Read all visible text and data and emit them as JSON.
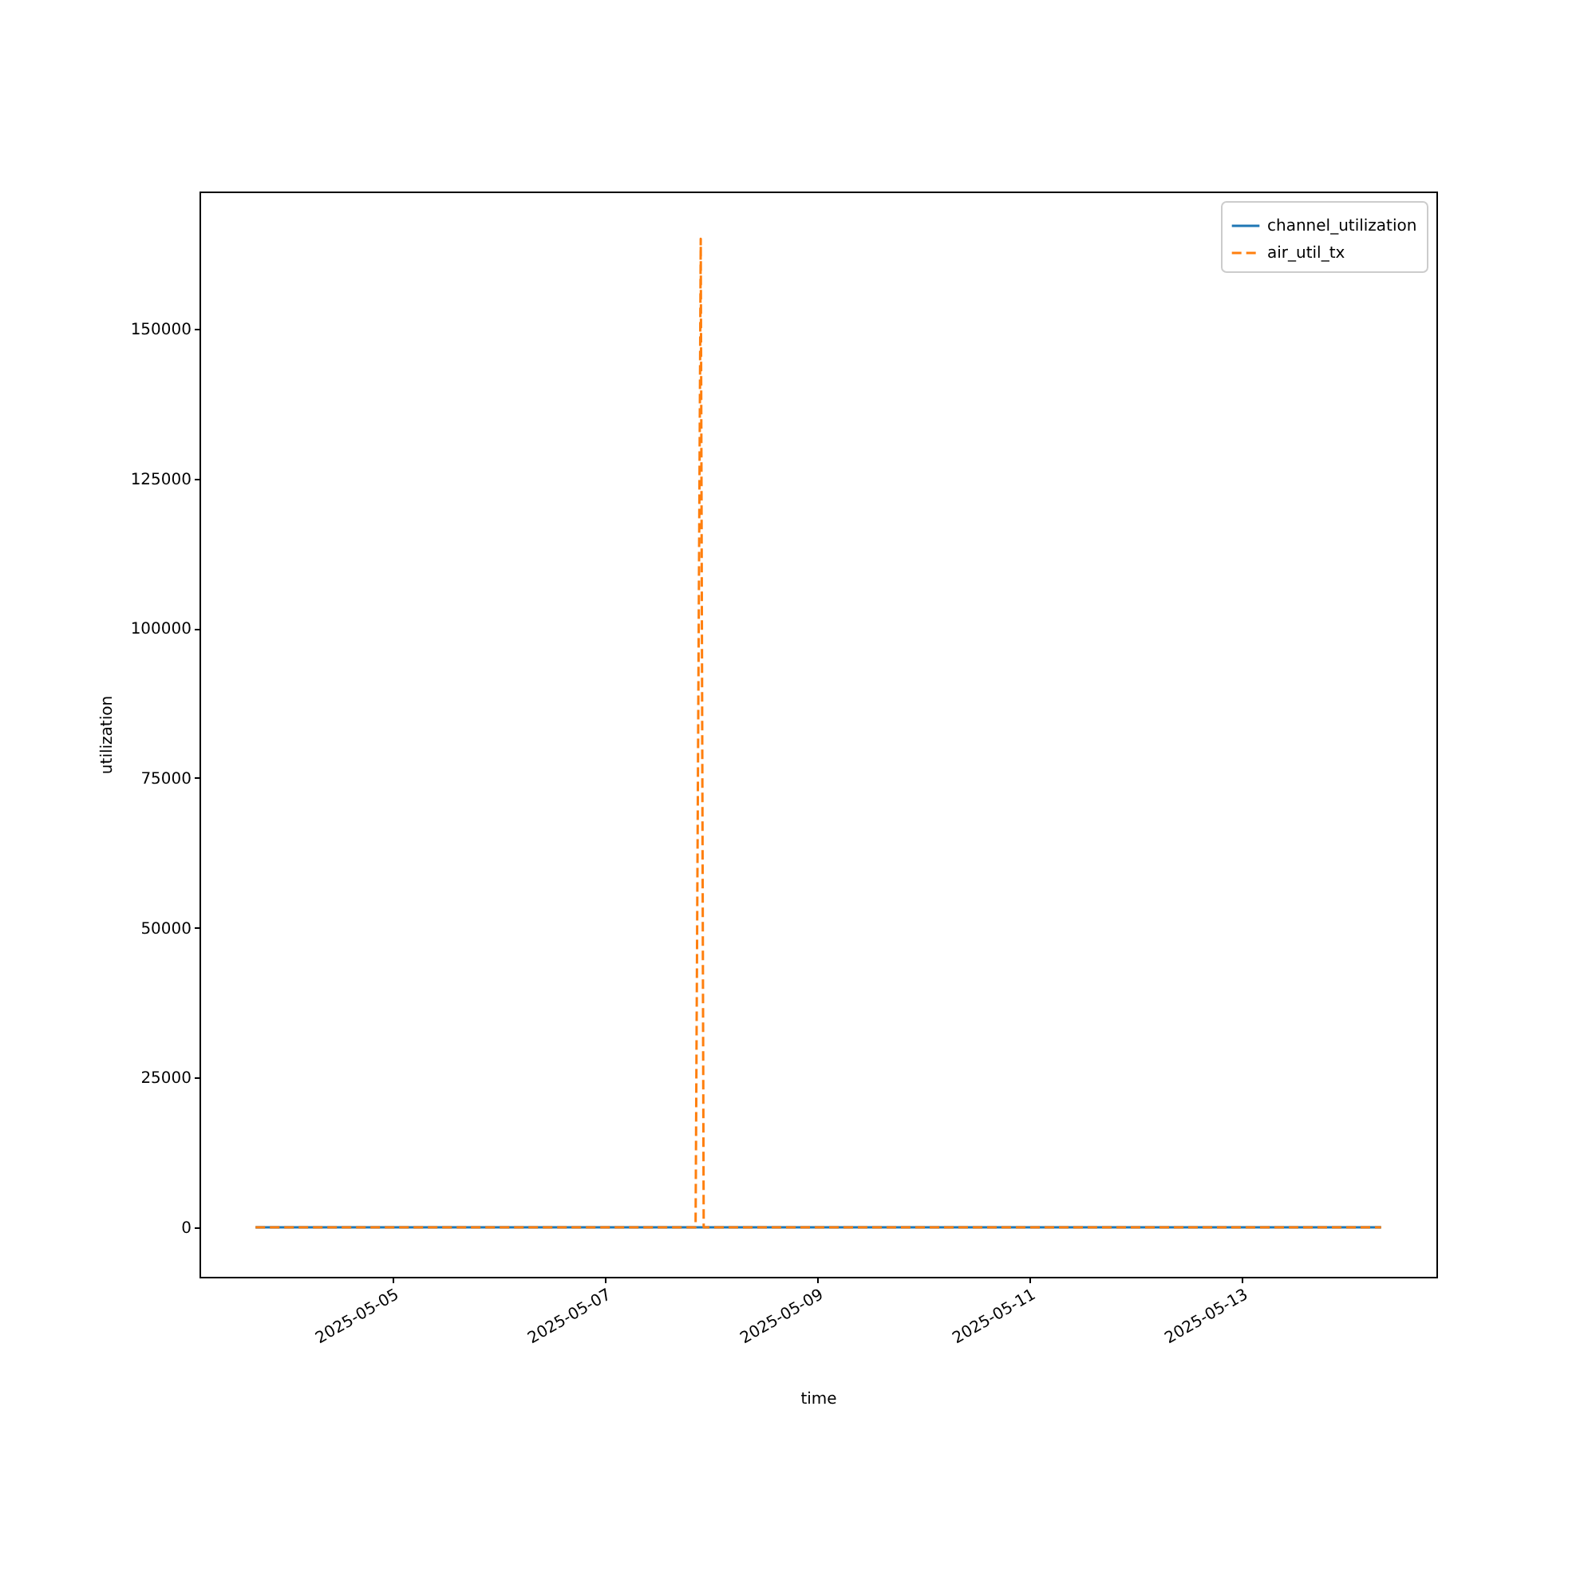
{
  "chart_data": {
    "type": "line",
    "xlabel": "time",
    "ylabel": "utilization",
    "xlim": [
      "2025-05-03T04:20",
      "2025-05-14T20:00"
    ],
    "xticks": [
      "2025-05-05",
      "2025-05-07",
      "2025-05-09",
      "2025-05-11",
      "2025-05-13"
    ],
    "ylim": [
      -8260,
      172900
    ],
    "yticks": [
      0,
      25000,
      50000,
      75000,
      100000,
      125000,
      150000
    ],
    "grid": false,
    "legend": "top right",
    "series": [
      {
        "name": "channel_utilization",
        "color": "#1f77b4",
        "line_style": "solid",
        "x": [
          "2025-05-03T17:00",
          "2025-05-07T21:40",
          "2025-05-14T07:30"
        ],
        "values": [
          0,
          0,
          0
        ]
      },
      {
        "name": "air_util_tx",
        "color": "#ff7f0e",
        "line_style": "dashed",
        "x": [
          "2025-05-03T17:00",
          "2025-05-07T20:30",
          "2025-05-07T21:40",
          "2025-05-07T22:20",
          "2025-05-14T07:30"
        ],
        "values": [
          0,
          0,
          165000,
          0,
          0
        ]
      }
    ]
  }
}
